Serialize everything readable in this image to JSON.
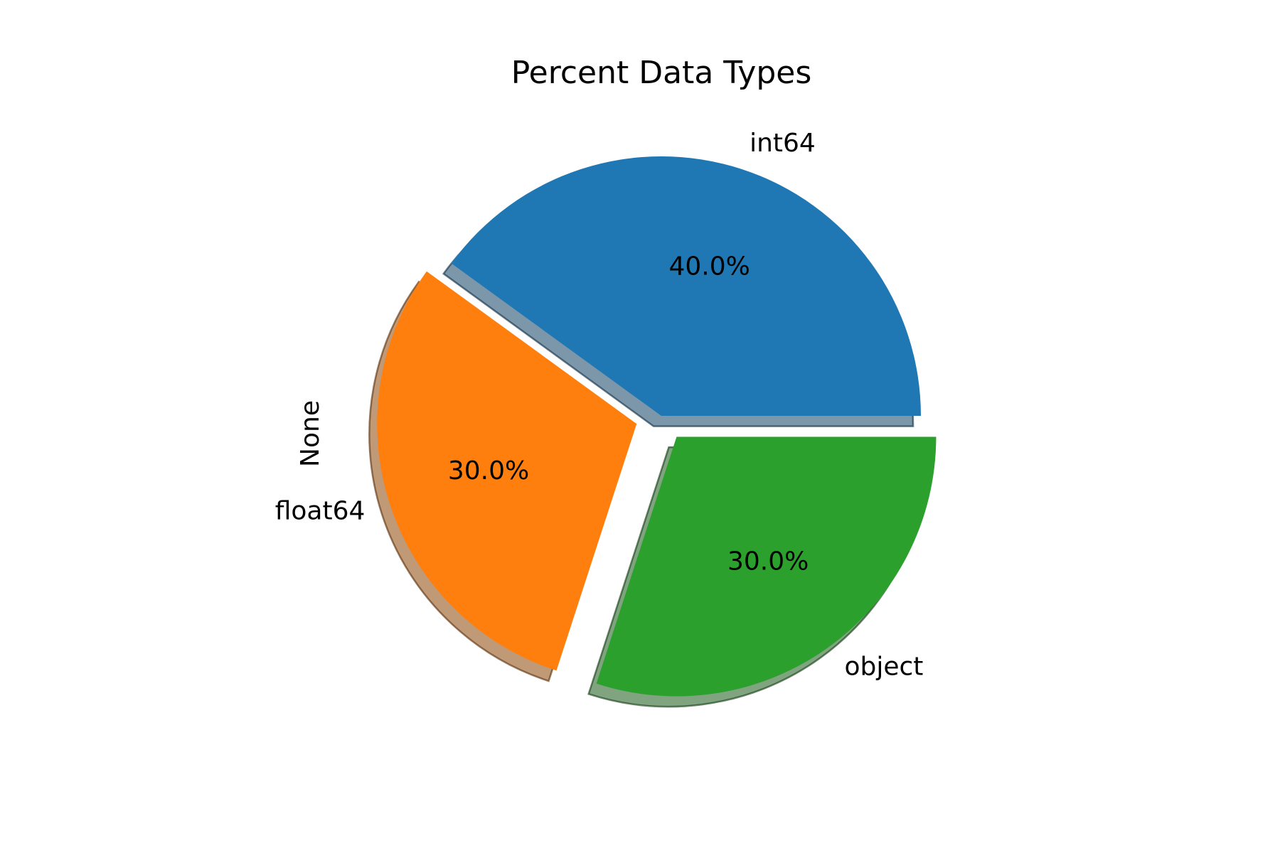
{
  "chart_data": {
    "type": "pie",
    "title": "Percent Data Types",
    "ylabel": "None",
    "categories": [
      "int64",
      "float64",
      "object"
    ],
    "values": [
      40.0,
      30.0,
      30.0
    ],
    "labels_pct": [
      "40.0%",
      "30.0%",
      "30.0%"
    ],
    "colors": [
      "#1f77b4",
      "#ff7f0e",
      "#2ca02c"
    ],
    "explode": [
      0,
      0.1,
      0.1
    ],
    "shadow": true,
    "start_angle_deg": 0,
    "legend": "none"
  }
}
